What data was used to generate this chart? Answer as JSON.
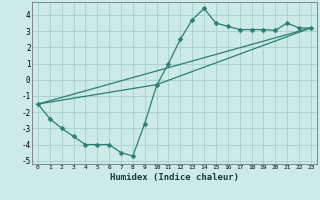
{
  "xlabel": "Humidex (Indice chaleur)",
  "background_color": "#cceae8",
  "grid_color": "#aad4d0",
  "line_color": "#2e7d72",
  "xlim": [
    -0.5,
    23.5
  ],
  "ylim": [
    -5.2,
    4.8
  ],
  "yticks": [
    -5,
    -4,
    -3,
    -2,
    -1,
    0,
    1,
    2,
    3,
    4
  ],
  "xticks": [
    0,
    1,
    2,
    3,
    4,
    5,
    6,
    7,
    8,
    9,
    10,
    11,
    12,
    13,
    14,
    15,
    16,
    17,
    18,
    19,
    20,
    21,
    22,
    23
  ],
  "line1_x": [
    0,
    1,
    2,
    3,
    4,
    5,
    6,
    7,
    8,
    9,
    10,
    11,
    12,
    13,
    14,
    15,
    16,
    17,
    18,
    19,
    20,
    21,
    22,
    23
  ],
  "line1_y": [
    -1.5,
    -2.4,
    -3.0,
    -3.5,
    -4.0,
    -4.0,
    -4.0,
    -4.5,
    -4.7,
    -2.7,
    -0.35,
    1.0,
    2.5,
    3.7,
    4.4,
    3.5,
    3.3,
    3.1,
    3.1,
    3.1,
    3.05,
    3.5,
    3.2,
    3.2
  ],
  "line2_x": [
    0,
    23
  ],
  "line2_y": [
    -1.5,
    3.2
  ],
  "line3_x": [
    0,
    10,
    23
  ],
  "line3_y": [
    -1.5,
    -0.3,
    3.2
  ],
  "marker_size": 2.5
}
